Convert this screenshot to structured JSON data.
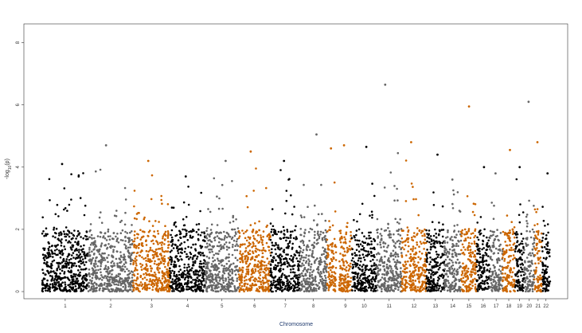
{
  "chart_data": {
    "type": "scatter",
    "title": "",
    "xlabel": "Chromosome",
    "ylabel_main": "-log",
    "ylabel_sub": "10",
    "ylabel_tail": "(p)",
    "ylim": [
      0,
      8.5
    ],
    "y_ticks": [
      0,
      2,
      4,
      6,
      8
    ],
    "grid": false,
    "legend": "none",
    "colors": {
      "black": "#000000",
      "gray": "#666666",
      "orange": "#cc6600",
      "axis": "#333333"
    },
    "chromosomes": [
      {
        "label": "1",
        "color": "black",
        "start": 0,
        "len": 248,
        "max": 4.1,
        "density": 1.0
      },
      {
        "label": "2",
        "color": "gray",
        "start": 248,
        "len": 242,
        "max": 4.7,
        "density": 1.0
      },
      {
        "label": "3",
        "color": "orange",
        "start": 490,
        "len": 198,
        "max": 4.2,
        "density": 1.0
      },
      {
        "label": "4",
        "color": "black",
        "start": 688,
        "len": 190,
        "max": 3.7,
        "density": 1.0
      },
      {
        "label": "5",
        "color": "gray",
        "start": 878,
        "len": 181,
        "max": 4.2,
        "density": 1.0
      },
      {
        "label": "6",
        "color": "orange",
        "start": 1059,
        "len": 171,
        "max": 4.5,
        "density": 1.0
      },
      {
        "label": "7",
        "color": "black",
        "start": 1230,
        "len": 159,
        "max": 4.2,
        "density": 1.0
      },
      {
        "label": "8",
        "color": "gray",
        "start": 1389,
        "len": 145,
        "max": 5.05,
        "density": 1.0
      },
      {
        "label": "",
        "color": "orange",
        "start": 1534,
        "len": 50,
        "max": 4.6,
        "density": 1.0
      },
      {
        "label": "9",
        "color": "orange",
        "start": 1600,
        "len": 68,
        "max": 4.7,
        "density": 1.0
      },
      {
        "label": "10",
        "color": "black",
        "start": 1668,
        "len": 134,
        "max": 4.65,
        "density": 1.0
      },
      {
        "label": "11",
        "color": "gray",
        "start": 1802,
        "len": 135,
        "max": 6.65,
        "density": 1.0
      },
      {
        "label": "12",
        "color": "orange",
        "start": 1937,
        "len": 133,
        "max": 4.8,
        "density": 1.0
      },
      {
        "label": "13",
        "color": "black",
        "start": 2070,
        "len": 97,
        "max": 4.4,
        "density": 1.0
      },
      {
        "label": "14",
        "color": "gray",
        "start": 2167,
        "len": 90,
        "max": 3.6,
        "density": 1.0
      },
      {
        "label": "15",
        "color": "orange",
        "start": 2257,
        "len": 84,
        "max": 5.95,
        "density": 1.0
      },
      {
        "label": "16",
        "color": "black",
        "start": 2341,
        "len": 70,
        "max": 4.0,
        "density": 1.0
      },
      {
        "label": "17",
        "color": "gray",
        "start": 2411,
        "len": 70,
        "max": 3.8,
        "density": 1.0
      },
      {
        "label": "18",
        "color": "orange",
        "start": 2481,
        "len": 66,
        "max": 4.55,
        "density": 1.0
      },
      {
        "label": "19",
        "color": "black",
        "start": 2547,
        "len": 50,
        "max": 4.0,
        "density": 1.0
      },
      {
        "label": "20",
        "color": "gray",
        "start": 2597,
        "len": 55,
        "max": 6.1,
        "density": 1.0
      },
      {
        "label": "21",
        "color": "orange",
        "start": 2652,
        "len": 40,
        "max": 4.8,
        "density": 1.0
      },
      {
        "label": "22",
        "color": "black",
        "start": 2692,
        "len": 45,
        "max": 3.8,
        "density": 1.0
      }
    ],
    "x_total": 2737
  }
}
